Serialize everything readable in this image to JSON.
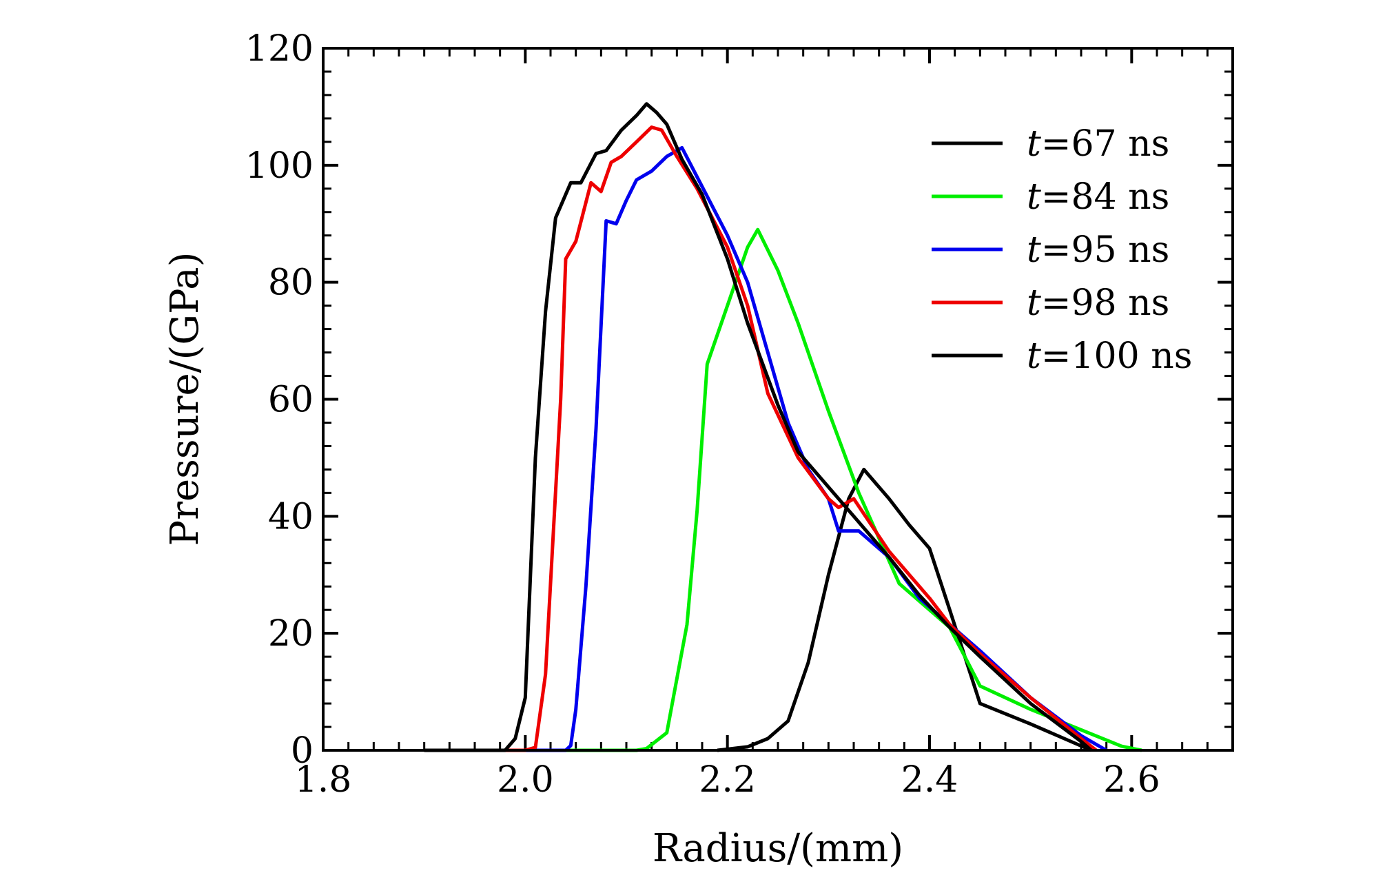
{
  "chart_data": {
    "type": "line",
    "title": "",
    "xlabel": "Radius/(mm)",
    "ylabel": "Pressure/(GPa)",
    "xlim": [
      1.8,
      2.7
    ],
    "ylim": [
      0,
      120
    ],
    "grid": false,
    "legend_position": "top-right",
    "x_ticks": [
      1.8,
      2.0,
      2.2,
      2.4,
      2.6
    ],
    "x_tick_labels": [
      "1.8",
      "2.0",
      "2.2",
      "2.4",
      "2.6"
    ],
    "y_ticks": [
      0,
      20,
      40,
      60,
      80,
      100,
      120
    ],
    "y_tick_labels": [
      "0",
      "20",
      "40",
      "60",
      "80",
      "100",
      "120"
    ],
    "series": [
      {
        "name": "t=67 ns",
        "label_var": "t",
        "label_rest": "=67 ns",
        "color": "#000000",
        "points": [
          [
            2.19,
            0
          ],
          [
            2.2,
            0.2
          ],
          [
            2.22,
            0.6
          ],
          [
            2.24,
            2
          ],
          [
            2.26,
            5
          ],
          [
            2.28,
            15
          ],
          [
            2.3,
            30
          ],
          [
            2.32,
            43
          ],
          [
            2.335,
            48
          ],
          [
            2.36,
            43
          ],
          [
            2.38,
            38.5
          ],
          [
            2.4,
            34.5
          ],
          [
            2.42,
            24
          ],
          [
            2.45,
            8
          ],
          [
            2.5,
            4.5
          ],
          [
            2.56,
            0
          ]
        ]
      },
      {
        "name": "t=84 ns",
        "label_var": "t",
        "label_rest": "=84 ns",
        "color": "#00ee00",
        "points": [
          [
            1.9,
            0
          ],
          [
            2.0,
            0
          ],
          [
            2.11,
            0
          ],
          [
            2.12,
            0.3
          ],
          [
            2.14,
            3
          ],
          [
            2.16,
            21.5
          ],
          [
            2.17,
            41
          ],
          [
            2.18,
            66
          ],
          [
            2.2,
            76
          ],
          [
            2.22,
            86
          ],
          [
            2.23,
            89
          ],
          [
            2.25,
            82
          ],
          [
            2.27,
            73
          ],
          [
            2.3,
            58
          ],
          [
            2.33,
            44
          ],
          [
            2.37,
            28.5
          ],
          [
            2.4,
            24
          ],
          [
            2.42,
            21
          ],
          [
            2.45,
            11
          ],
          [
            2.5,
            7
          ],
          [
            2.55,
            3.5
          ],
          [
            2.59,
            0.7
          ],
          [
            2.61,
            0
          ]
        ]
      },
      {
        "name": "t=95 ns",
        "label_var": "t",
        "label_rest": "=95 ns",
        "color": "#0000ee",
        "points": [
          [
            1.9,
            0
          ],
          [
            2.0,
            0
          ],
          [
            2.04,
            0
          ],
          [
            2.045,
            0.8
          ],
          [
            2.05,
            7
          ],
          [
            2.06,
            28
          ],
          [
            2.07,
            55
          ],
          [
            2.08,
            90.5
          ],
          [
            2.09,
            90
          ],
          [
            2.1,
            94
          ],
          [
            2.11,
            97.5
          ],
          [
            2.125,
            99
          ],
          [
            2.14,
            101.5
          ],
          [
            2.155,
            103
          ],
          [
            2.17,
            98
          ],
          [
            2.2,
            88
          ],
          [
            2.22,
            80
          ],
          [
            2.24,
            68
          ],
          [
            2.26,
            56
          ],
          [
            2.28,
            48
          ],
          [
            2.3,
            43
          ],
          [
            2.31,
            37.5
          ],
          [
            2.33,
            37.5
          ],
          [
            2.36,
            33
          ],
          [
            2.39,
            26
          ],
          [
            2.42,
            21.5
          ],
          [
            2.45,
            17
          ],
          [
            2.5,
            9
          ],
          [
            2.55,
            2.5
          ],
          [
            2.575,
            0
          ]
        ]
      },
      {
        "name": "t=98 ns",
        "label_var": "t",
        "label_rest": "=98 ns",
        "color": "#ee0000",
        "points": [
          [
            1.9,
            0
          ],
          [
            2.0,
            0
          ],
          [
            2.01,
            0.5
          ],
          [
            2.02,
            13
          ],
          [
            2.035,
            60
          ],
          [
            2.04,
            84
          ],
          [
            2.05,
            87
          ],
          [
            2.065,
            97
          ],
          [
            2.075,
            95.5
          ],
          [
            2.085,
            100.5
          ],
          [
            2.095,
            101.5
          ],
          [
            2.11,
            104
          ],
          [
            2.125,
            106.5
          ],
          [
            2.135,
            106
          ],
          [
            2.15,
            101.5
          ],
          [
            2.17,
            96
          ],
          [
            2.2,
            86
          ],
          [
            2.22,
            76
          ],
          [
            2.24,
            61
          ],
          [
            2.27,
            50
          ],
          [
            2.3,
            43
          ],
          [
            2.31,
            41.5
          ],
          [
            2.325,
            43
          ],
          [
            2.36,
            34
          ],
          [
            2.4,
            26
          ],
          [
            2.42,
            21.5
          ],
          [
            2.45,
            16.5
          ],
          [
            2.5,
            9
          ],
          [
            2.55,
            2
          ],
          [
            2.565,
            0
          ]
        ]
      },
      {
        "name": "t=100 ns",
        "label_var": "t",
        "label_rest": "=100 ns",
        "color": "#000000",
        "points": [
          [
            1.9,
            0
          ],
          [
            1.98,
            0
          ],
          [
            1.99,
            2
          ],
          [
            2.0,
            9
          ],
          [
            2.01,
            50
          ],
          [
            2.02,
            75
          ],
          [
            2.03,
            91
          ],
          [
            2.045,
            97
          ],
          [
            2.055,
            97
          ],
          [
            2.07,
            102
          ],
          [
            2.08,
            102.5
          ],
          [
            2.095,
            106
          ],
          [
            2.11,
            108.5
          ],
          [
            2.12,
            110.5
          ],
          [
            2.13,
            109
          ],
          [
            2.14,
            107
          ],
          [
            2.155,
            101
          ],
          [
            2.175,
            95
          ],
          [
            2.2,
            84
          ],
          [
            2.22,
            73
          ],
          [
            2.25,
            59
          ],
          [
            2.27,
            51
          ],
          [
            2.3,
            45
          ],
          [
            2.33,
            39
          ],
          [
            2.36,
            33
          ],
          [
            2.39,
            26.5
          ],
          [
            2.42,
            21
          ],
          [
            2.45,
            16
          ],
          [
            2.5,
            8
          ],
          [
            2.55,
            1.5
          ],
          [
            2.56,
            0
          ]
        ]
      }
    ]
  }
}
